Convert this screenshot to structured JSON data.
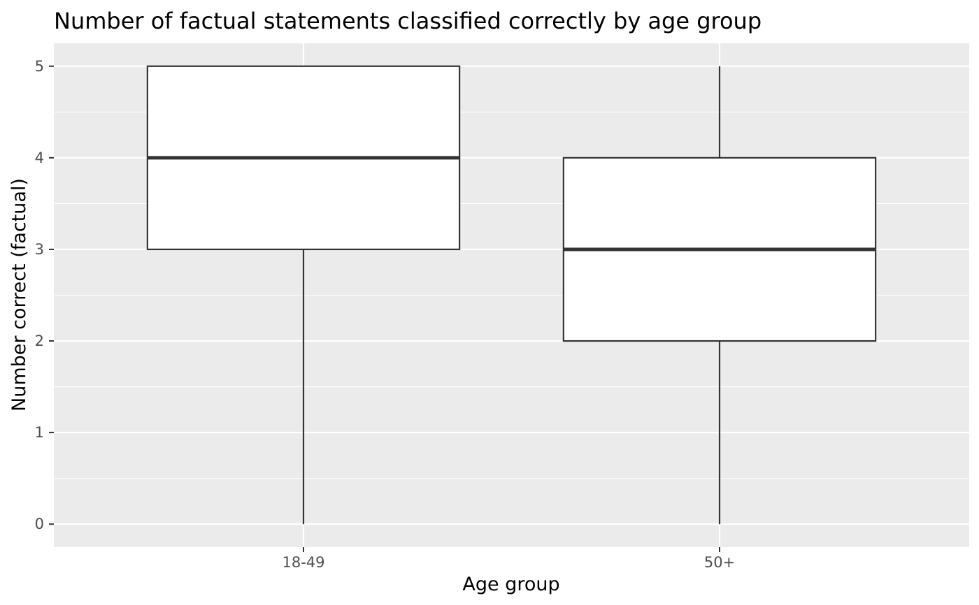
{
  "chart_data": {
    "type": "boxplot",
    "title": "Number of factual statements classified correctly by age group",
    "xlabel": "Age group",
    "ylabel": "Number correct (factual)",
    "categories": [
      "18-49",
      "50+"
    ],
    "boxes": [
      {
        "category": "18-49",
        "min": 0,
        "q1": 3,
        "median": 4,
        "q3": 5,
        "max": 5
      },
      {
        "category": "50+",
        "min": 0,
        "q1": 2,
        "median": 3,
        "q3": 4,
        "max": 5
      }
    ],
    "yticks": [
      0,
      1,
      2,
      3,
      4,
      5
    ],
    "ylim": [
      -0.25,
      5.25
    ],
    "grid": true,
    "legend": "none",
    "colors": {
      "panel_background": "#ebebeb",
      "grid": "#ffffff",
      "box_fill": "#ffffff",
      "box_stroke": "#333333",
      "tick_text": "#4d4d4d",
      "tick_mark": "#333333"
    }
  }
}
